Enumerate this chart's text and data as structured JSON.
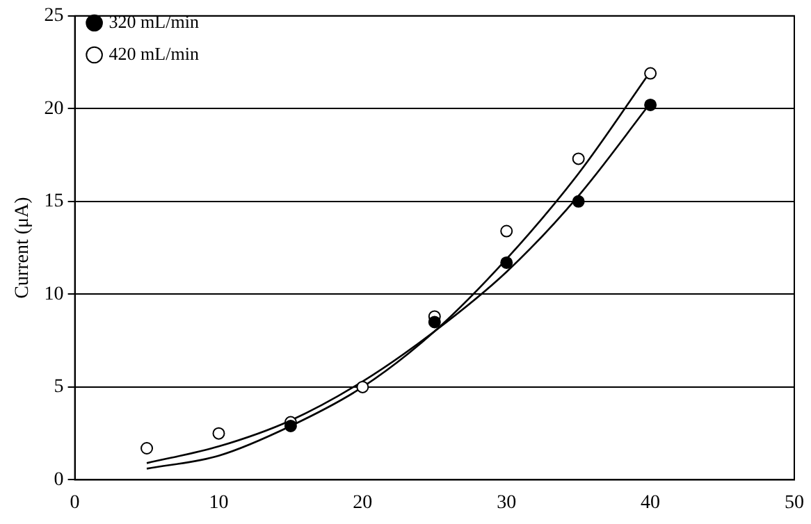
{
  "chart_data": {
    "type": "scatter",
    "ylabel": "Current (μA)",
    "xlim": [
      0,
      50
    ],
    "xticks": [
      0,
      10,
      20,
      30,
      40,
      50
    ],
    "ylim": [
      0,
      25
    ],
    "yticks": [
      0,
      5,
      10,
      15,
      20,
      25
    ],
    "grid": "y",
    "legend": "top left",
    "series": [
      {
        "name": "320 mL/min",
        "color": "#000000",
        "marker": "circle",
        "x": [
          15,
          25,
          30,
          35,
          40
        ],
        "values": [
          2.9,
          8.5,
          11.7,
          15.0,
          20.2
        ]
      },
      {
        "name": "420 mL/min",
        "color": "#ffffff",
        "marker": "circle",
        "x": [
          5,
          10,
          15,
          20,
          25,
          30,
          35,
          40
        ],
        "values": [
          1.7,
          2.5,
          3.1,
          5.0,
          8.8,
          13.4,
          17.3,
          21.9
        ]
      },
      {
        "type": "line",
        "marker": "none",
        "color": "#000000",
        "x": [
          5,
          10,
          15,
          20,
          25,
          30,
          35,
          40
        ],
        "values": [
          0.9,
          1.8,
          3.2,
          5.3,
          8.0,
          11.2,
          15.3,
          20.3
        ]
      },
      {
        "type": "line",
        "marker": "none",
        "color": "#000000",
        "x": [
          5,
          10,
          15,
          20,
          25,
          30,
          35,
          40
        ],
        "values": [
          0.6,
          1.3,
          2.9,
          5.0,
          8.0,
          11.9,
          16.5,
          22.0
        ]
      }
    ]
  }
}
